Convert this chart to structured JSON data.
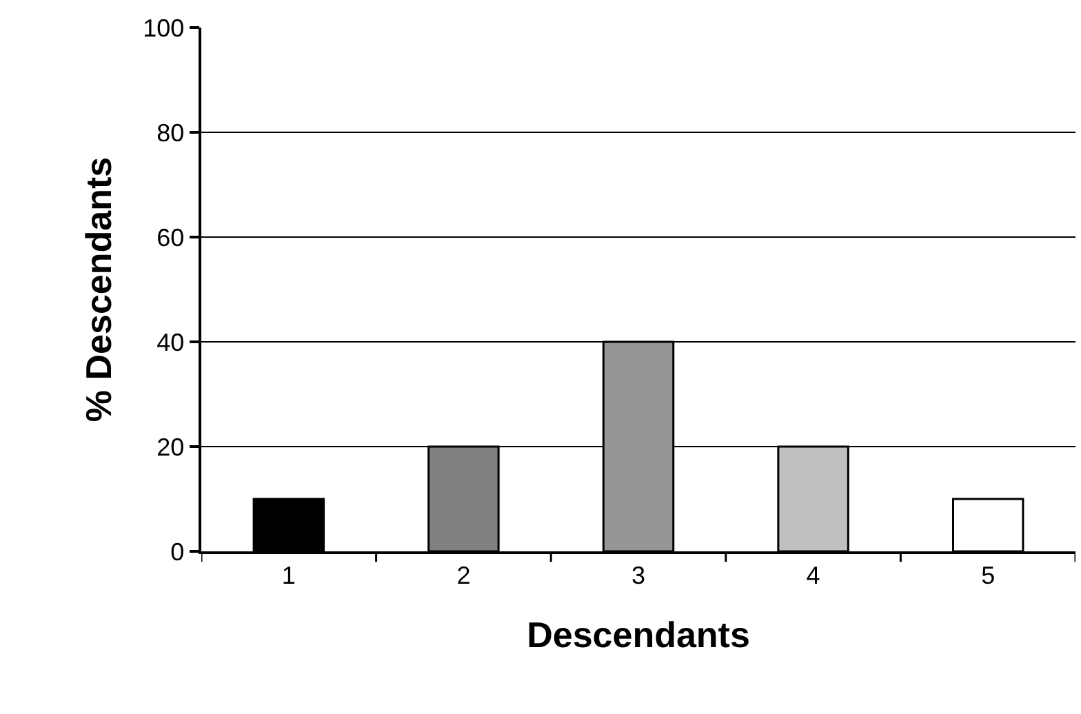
{
  "chart_data": {
    "type": "bar",
    "xlabel": "Descendants",
    "ylabel": "% Descendants",
    "categories": [
      "1",
      "2",
      "3",
      "4",
      "5"
    ],
    "values": [
      10,
      20,
      40,
      20,
      10
    ],
    "colors": [
      "#000000",
      "#808080",
      "#969696",
      "#c0c0c0",
      "#ffffff"
    ],
    "ylim": [
      0,
      100
    ],
    "yticks": [
      0,
      20,
      40,
      60,
      80,
      100
    ],
    "grid": "y"
  }
}
